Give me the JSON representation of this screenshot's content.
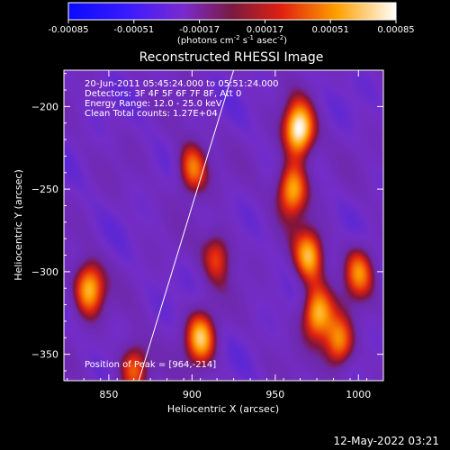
{
  "colorbar": {
    "tick_labels": [
      "-0.00085",
      "-0.00051",
      "-0.00017",
      "0.00017",
      "0.00051",
      "0.00085"
    ],
    "tick_values": [
      -0.00085,
      -0.00051,
      -0.00017,
      0.00017,
      0.00051,
      0.00085
    ],
    "range": [
      -0.00085,
      0.00085
    ],
    "units_prefix": "(photons cm",
    "units_sup1": "-2",
    "units_mid1": " s",
    "units_sup2": "-1",
    "units_mid2": " asec",
    "units_sup3": "-2",
    "units_suffix": ")"
  },
  "chart_data": {
    "type": "heatmap",
    "title": "Reconstructed RHESSI Image",
    "xlabel": "Heliocentric X (arcsec)",
    "ylabel": "Heliocentric Y (arcsec)",
    "xlim": [
      823,
      1015
    ],
    "ylim": [
      -366,
      -178
    ],
    "x_ticks": [
      850,
      900,
      950,
      1000
    ],
    "y_ticks": [
      -200,
      -250,
      -300,
      -350
    ],
    "colormap": "Blue-Purple-Red-Yellow-White",
    "info_lines": [
      "20-Jun-2011 05:45:24.000 to 05:51:24.000",
      "Detectors: 3F 4F 5F 6F 7F 8F, Att 0",
      "Energy Range: 12.0 - 25.0 keV",
      "Clean    Total counts: 1.27E+04"
    ],
    "peak_text": "Position of Peak = [964,-214]",
    "peak": [
      964,
      -214
    ],
    "limb_line": [
      [
        868,
        -366
      ],
      [
        925,
        -178
      ]
    ],
    "sources": [
      {
        "x": 964,
        "y": -214,
        "intensity": 0.00085
      },
      {
        "x": 960,
        "y": -250,
        "intensity": 0.0006
      },
      {
        "x": 970,
        "y": -290,
        "intensity": 0.00055
      },
      {
        "x": 975,
        "y": -325,
        "intensity": 0.0006
      },
      {
        "x": 988,
        "y": -343,
        "intensity": 0.0005
      },
      {
        "x": 900,
        "y": -237,
        "intensity": 0.00045
      },
      {
        "x": 905,
        "y": -340,
        "intensity": 0.0006
      },
      {
        "x": 838,
        "y": -310,
        "intensity": 0.0006
      },
      {
        "x": 865,
        "y": -358,
        "intensity": 0.0004
      },
      {
        "x": 1000,
        "y": -300,
        "intensity": 0.0004
      },
      {
        "x": 915,
        "y": -290,
        "intensity": 0.0003
      }
    ]
  },
  "footer": {
    "timestamp": "12-May-2022 03:21"
  }
}
